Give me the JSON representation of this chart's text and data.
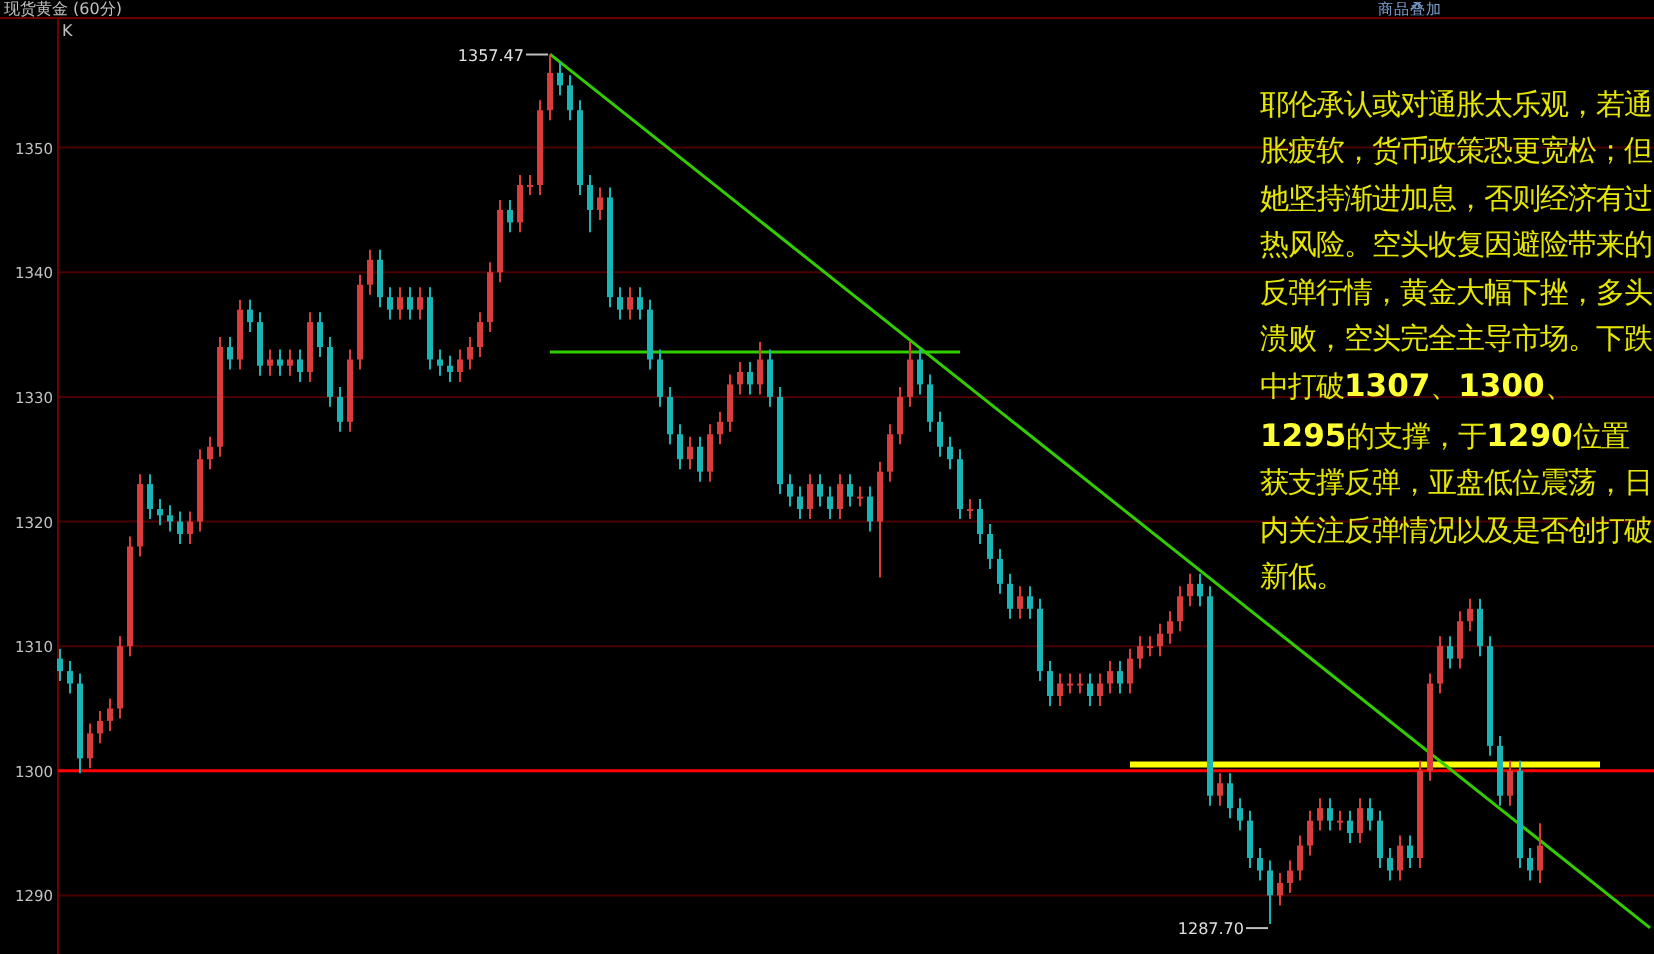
{
  "chart_data": {
    "type": "candlestick",
    "title": "现货黄金 (60分)",
    "categories": [
      null,
      null,
      null,
      null,
      null,
      null,
      null,
      null,
      null,
      null,
      null,
      null,
      null,
      null,
      null,
      null,
      null,
      null,
      null,
      null,
      null,
      null,
      null,
      null,
      null,
      null,
      null,
      null,
      null,
      null,
      null,
      null,
      null,
      null,
      null,
      null,
      null,
      null,
      null,
      null,
      null,
      null,
      null,
      null,
      null,
      null,
      null,
      null,
      null,
      null,
      null,
      null,
      null,
      null,
      null,
      null,
      null,
      null,
      null,
      null,
      null,
      null,
      null,
      null,
      null,
      null,
      null,
      null,
      null,
      null,
      null,
      null,
      null,
      null,
      null,
      null,
      null,
      null,
      null,
      null,
      null,
      null,
      null,
      null,
      null,
      null,
      null,
      null,
      null,
      null,
      null,
      null,
      null,
      null,
      null,
      null,
      null,
      null,
      null,
      null,
      null,
      null,
      null,
      null,
      null,
      null,
      null,
      null,
      null,
      null,
      null,
      null,
      null,
      null,
      null,
      null,
      null,
      null,
      null,
      null,
      null,
      null,
      null,
      null,
      null,
      null,
      null,
      null,
      null,
      null,
      null,
      null,
      null,
      null,
      null,
      null,
      null,
      null,
      null,
      null,
      null,
      null,
      null,
      null,
      null,
      null,
      null,
      null,
      null,
      null,
      null,
      null,
      null,
      null,
      null,
      null,
      null,
      null,
      null,
      null
    ],
    "ohlc": [
      [
        1309,
        1309.8,
        1307.2,
        1308
      ],
      [
        1308,
        1308.8,
        1306.2,
        1307
      ],
      [
        1307,
        1307.8,
        1299.8,
        1301
      ],
      [
        1301,
        1303.8,
        1300.2,
        1303
      ],
      [
        1303,
        1304.8,
        1302.2,
        1304
      ],
      [
        1304,
        1305.8,
        1303.2,
        1305
      ],
      [
        1305,
        1310.8,
        1304.2,
        1310
      ],
      [
        1310,
        1318.8,
        1309.2,
        1318
      ],
      [
        1318,
        1323.8,
        1317.2,
        1323
      ],
      [
        1323,
        1323.8,
        1320.2,
        1321
      ],
      [
        1321,
        1321.8,
        1319.7,
        1320.5
      ],
      [
        1320.5,
        1321.3,
        1319.2,
        1320
      ],
      [
        1320,
        1320.8,
        1318.2,
        1319
      ],
      [
        1319,
        1320.8,
        1318.2,
        1320
      ],
      [
        1320,
        1325.8,
        1319.2,
        1325
      ],
      [
        1325,
        1326.8,
        1324.2,
        1326
      ],
      [
        1326,
        1334.8,
        1325.2,
        1334
      ],
      [
        1334,
        1334.8,
        1332.2,
        1333
      ],
      [
        1333,
        1337.8,
        1332.2,
        1337
      ],
      [
        1337,
        1337.8,
        1335.2,
        1336
      ],
      [
        1336,
        1336.8,
        1331.7,
        1332.5
      ],
      [
        1332.5,
        1333.8,
        1331.7,
        1333
      ],
      [
        1333,
        1333.8,
        1331.7,
        1332.5
      ],
      [
        1332.5,
        1333.8,
        1331.7,
        1333
      ],
      [
        1333,
        1333.8,
        1331.2,
        1332
      ],
      [
        1332,
        1336.8,
        1331.2,
        1336
      ],
      [
        1336,
        1336.8,
        1333.2,
        1334
      ],
      [
        1334,
        1334.8,
        1329.2,
        1330
      ],
      [
        1330,
        1330.8,
        1327.2,
        1328
      ],
      [
        1328,
        1333.8,
        1327.2,
        1333
      ],
      [
        1333,
        1339.8,
        1332.2,
        1339
      ],
      [
        1339,
        1341.8,
        1338.2,
        1341
      ],
      [
        1341,
        1341.8,
        1337.2,
        1338
      ],
      [
        1338,
        1338.8,
        1336.2,
        1337
      ],
      [
        1337,
        1338.8,
        1336.2,
        1338
      ],
      [
        1338,
        1338.8,
        1336.2,
        1337
      ],
      [
        1337,
        1338.8,
        1336.2,
        1338
      ],
      [
        1338,
        1338.8,
        1332.2,
        1333
      ],
      [
        1333,
        1333.8,
        1331.7,
        1332.5
      ],
      [
        1332.5,
        1333.3,
        1331.2,
        1332
      ],
      [
        1332,
        1333.8,
        1331.2,
        1333
      ],
      [
        1333,
        1334.8,
        1332.2,
        1334
      ],
      [
        1334,
        1336.8,
        1333.2,
        1336
      ],
      [
        1336,
        1340.8,
        1335.2,
        1340
      ],
      [
        1340,
        1345.8,
        1339.2,
        1345
      ],
      [
        1345,
        1345.8,
        1343.2,
        1344
      ],
      [
        1344,
        1347.8,
        1343.2,
        1347
      ],
      [
        1347,
        1347.8,
        1346.2,
        1347
      ],
      [
        1347,
        1353.8,
        1346.2,
        1353
      ],
      [
        1353,
        1357.47,
        1352.2,
        1356
      ],
      [
        1356,
        1356.8,
        1354.2,
        1355
      ],
      [
        1355,
        1355.8,
        1352.2,
        1353
      ],
      [
        1353,
        1353.8,
        1346.2,
        1347
      ],
      [
        1347,
        1347.8,
        1343.2,
        1345
      ],
      [
        1345,
        1346.8,
        1344.2,
        1346
      ],
      [
        1346,
        1346.8,
        1337.2,
        1338
      ],
      [
        1338,
        1338.8,
        1336.2,
        1337
      ],
      [
        1337,
        1338.8,
        1336.2,
        1338
      ],
      [
        1338,
        1338.8,
        1336.2,
        1337
      ],
      [
        1337,
        1337.8,
        1332.2,
        1333
      ],
      [
        1333,
        1333.8,
        1329.2,
        1330
      ],
      [
        1330,
        1330.8,
        1326.2,
        1327
      ],
      [
        1327,
        1327.8,
        1324.2,
        1325
      ],
      [
        1325,
        1326.8,
        1324.2,
        1326
      ],
      [
        1326,
        1326.8,
        1323.2,
        1324
      ],
      [
        1324,
        1327.8,
        1323.2,
        1327
      ],
      [
        1327,
        1328.8,
        1326.2,
        1328
      ],
      [
        1328,
        1331.8,
        1327.2,
        1331
      ],
      [
        1331,
        1332.8,
        1330.2,
        1332
      ],
      [
        1332,
        1332.8,
        1330.2,
        1331
      ],
      [
        1331,
        1334.4,
        1330.2,
        1333
      ],
      [
        1333,
        1333.8,
        1329.2,
        1330
      ],
      [
        1330,
        1330.8,
        1322.2,
        1323
      ],
      [
        1323,
        1323.8,
        1321.2,
        1322
      ],
      [
        1322,
        1322.8,
        1320.2,
        1321
      ],
      [
        1321,
        1323.8,
        1320.2,
        1323
      ],
      [
        1323,
        1323.8,
        1321.2,
        1322
      ],
      [
        1322,
        1322.8,
        1320.2,
        1321
      ],
      [
        1321,
        1323.8,
        1320.2,
        1323
      ],
      [
        1323,
        1323.8,
        1321.2,
        1322
      ],
      [
        1322,
        1322.8,
        1321.2,
        1322
      ],
      [
        1322,
        1322.8,
        1319.2,
        1320
      ],
      [
        1320,
        1324.8,
        1315.5,
        1324
      ],
      [
        1324,
        1327.8,
        1323.2,
        1327
      ],
      [
        1327,
        1330.8,
        1326.2,
        1330
      ],
      [
        1330,
        1334.4,
        1329.2,
        1333
      ],
      [
        1333,
        1333.8,
        1330.2,
        1331
      ],
      [
        1331,
        1331.8,
        1327.2,
        1328
      ],
      [
        1328,
        1328.8,
        1325.2,
        1326
      ],
      [
        1326,
        1326.8,
        1324.2,
        1325
      ],
      [
        1325,
        1325.8,
        1320.2,
        1321
      ],
      [
        1321,
        1321.8,
        1320.2,
        1321
      ],
      [
        1321,
        1321.8,
        1318.2,
        1319
      ],
      [
        1319,
        1319.8,
        1316.2,
        1317
      ],
      [
        1317,
        1317.8,
        1314.2,
        1315
      ],
      [
        1315,
        1315.8,
        1312.2,
        1313
      ],
      [
        1313,
        1314.8,
        1312.2,
        1314
      ],
      [
        1314,
        1314.8,
        1312.2,
        1313
      ],
      [
        1313,
        1313.8,
        1307.2,
        1308
      ],
      [
        1308,
        1308.8,
        1305.2,
        1306
      ],
      [
        1306,
        1307.8,
        1305.2,
        1307
      ],
      [
        1307,
        1307.8,
        1306.2,
        1307
      ],
      [
        1307,
        1307.8,
        1306.2,
        1307
      ],
      [
        1307,
        1307.8,
        1305.2,
        1306
      ],
      [
        1306,
        1307.8,
        1305.2,
        1307
      ],
      [
        1307,
        1308.8,
        1306.2,
        1308
      ],
      [
        1308,
        1308.8,
        1306.2,
        1307
      ],
      [
        1307,
        1309.8,
        1306.2,
        1309
      ],
      [
        1309,
        1310.8,
        1308.2,
        1310
      ],
      [
        1310,
        1310.8,
        1309.2,
        1310
      ],
      [
        1310,
        1311.8,
        1309.2,
        1311
      ],
      [
        1311,
        1312.8,
        1310.2,
        1312
      ],
      [
        1312,
        1314.8,
        1311.2,
        1314
      ],
      [
        1314,
        1315.8,
        1313.2,
        1315
      ],
      [
        1315,
        1315.8,
        1313.2,
        1314
      ],
      [
        1314,
        1314.8,
        1297.2,
        1298
      ],
      [
        1298,
        1299.8,
        1297.2,
        1299
      ],
      [
        1299,
        1299.8,
        1296.2,
        1297
      ],
      [
        1297,
        1297.8,
        1295.2,
        1296
      ],
      [
        1296,
        1296.8,
        1292.2,
        1293
      ],
      [
        1293,
        1293.8,
        1291.2,
        1292
      ],
      [
        1292,
        1292.8,
        1287.7,
        1290
      ],
      [
        1290,
        1291.8,
        1289.2,
        1291
      ],
      [
        1291,
        1292.8,
        1290.2,
        1292
      ],
      [
        1292,
        1294.8,
        1291.2,
        1294
      ],
      [
        1294,
        1296.8,
        1293.2,
        1296
      ],
      [
        1296,
        1297.8,
        1295.2,
        1297
      ],
      [
        1297,
        1297.8,
        1295.2,
        1296
      ],
      [
        1296,
        1296.8,
        1295.2,
        1296
      ],
      [
        1296,
        1296.8,
        1294.2,
        1295
      ],
      [
        1295,
        1297.8,
        1294.2,
        1297
      ],
      [
        1297,
        1297.8,
        1295.2,
        1296
      ],
      [
        1296,
        1296.8,
        1292.2,
        1293
      ],
      [
        1293,
        1293.8,
        1291.2,
        1292
      ],
      [
        1292,
        1294.8,
        1291.2,
        1294
      ],
      [
        1294,
        1294.8,
        1292.2,
        1293
      ],
      [
        1293,
        1300.8,
        1292.2,
        1300
      ],
      [
        1300,
        1307.8,
        1299.2,
        1307
      ],
      [
        1307,
        1310.8,
        1306.2,
        1310
      ],
      [
        1310,
        1310.8,
        1308.2,
        1309
      ],
      [
        1309,
        1312.8,
        1308.2,
        1312
      ],
      [
        1312,
        1313.8,
        1311.2,
        1313
      ],
      [
        1313,
        1313.8,
        1309.2,
        1310
      ],
      [
        1310,
        1310.8,
        1301.2,
        1302
      ],
      [
        1302,
        1302.8,
        1297.2,
        1298
      ],
      [
        1298,
        1300.8,
        1297.2,
        1300
      ],
      [
        1300,
        1300.8,
        1292.2,
        1293
      ],
      [
        1293,
        1293.8,
        1291.2,
        1292
      ],
      [
        1292,
        1295.8,
        1291,
        1294
      ],
      null,
      null,
      null,
      null,
      null,
      null,
      null,
      null,
      null,
      null,
      null
    ],
    "series": [
      {
        "type": "line",
        "color": "#ffff00",
        "values": [
          null,
          null,
          null,
          null,
          null,
          null,
          null,
          null,
          null,
          null,
          null,
          null,
          null,
          null,
          null,
          null,
          null,
          null,
          null,
          null,
          null,
          null,
          null,
          null,
          null,
          null,
          null,
          null,
          null,
          null,
          null,
          null,
          null,
          null,
          null,
          null,
          null,
          null,
          null,
          null,
          null,
          null,
          null,
          null,
          null,
          null,
          null,
          null,
          null,
          null,
          null,
          null,
          null,
          null,
          null,
          null,
          null,
          null,
          null,
          null,
          null,
          null,
          null,
          null,
          null,
          null,
          null,
          null,
          null,
          null,
          null,
          null,
          null,
          null,
          null,
          null,
          null,
          null,
          null,
          null,
          null,
          null,
          null,
          null,
          null,
          null,
          null,
          null,
          null,
          null,
          null,
          null,
          null,
          null,
          null,
          null,
          null,
          null,
          null,
          null,
          null,
          null,
          null,
          null,
          null,
          null,
          null,
          1300.5,
          null,
          null,
          null,
          null,
          null,
          null,
          null,
          null,
          null,
          null,
          null,
          null,
          null,
          null,
          null,
          null,
          null,
          null,
          null,
          null,
          null,
          null,
          null,
          null,
          null,
          null,
          null,
          null,
          null,
          null,
          null,
          null,
          null,
          null,
          null,
          null,
          null,
          null,
          null,
          null,
          null,
          null,
          null,
          null,
          null,
          null,
          1300.5,
          null,
          null,
          null,
          null,
          null
        ]
      },
      {
        "type": "line",
        "color": "#33cc00",
        "values": [
          null,
          null,
          null,
          null,
          null,
          null,
          null,
          null,
          null,
          null,
          null,
          null,
          null,
          null,
          null,
          null,
          null,
          null,
          null,
          null,
          null,
          null,
          null,
          null,
          null,
          null,
          null,
          null,
          null,
          null,
          null,
          null,
          null,
          null,
          null,
          null,
          null,
          null,
          null,
          null,
          null,
          null,
          null,
          null,
          null,
          null,
          null,
          null,
          null,
          1333.6,
          null,
          null,
          null,
          null,
          null,
          null,
          null,
          null,
          null,
          null,
          null,
          null,
          null,
          null,
          null,
          null,
          null,
          null,
          null,
          null,
          null,
          null,
          null,
          null,
          null,
          null,
          null,
          null,
          null,
          null,
          null,
          null,
          null,
          null,
          null,
          null,
          null,
          null,
          null,
          null,
          1333.6,
          null,
          null,
          null,
          null,
          null,
          null,
          null,
          null,
          null,
          null,
          null,
          null,
          null,
          null,
          null,
          null,
          null,
          null,
          null,
          null,
          null,
          null,
          null,
          null,
          null,
          null,
          null,
          null,
          null,
          null,
          null,
          null,
          null,
          null,
          null,
          null,
          null,
          null,
          null,
          null,
          null,
          null,
          null,
          null,
          null,
          null,
          null,
          null,
          null,
          null,
          null,
          null,
          null,
          null,
          null,
          null,
          null,
          null,
          null,
          null,
          null,
          null,
          null,
          null,
          null,
          null,
          null,
          null,
          null
        ]
      },
      {
        "type": "line",
        "color": "#33cc00",
        "values": [
          null,
          null,
          null,
          null,
          null,
          null,
          null,
          null,
          null,
          null,
          null,
          null,
          null,
          null,
          null,
          null,
          null,
          null,
          null,
          null,
          null,
          null,
          null,
          null,
          null,
          null,
          null,
          null,
          null,
          null,
          null,
          null,
          null,
          null,
          null,
          null,
          null,
          null,
          null,
          null,
          null,
          null,
          null,
          null,
          null,
          null,
          null,
          null,
          null,
          1357.5,
          null,
          null,
          null,
          null,
          null,
          null,
          null,
          null,
          null,
          null,
          null,
          null,
          null,
          null,
          null,
          null,
          null,
          null,
          null,
          null,
          null,
          null,
          null,
          null,
          null,
          null,
          null,
          null,
          null,
          null,
          null,
          null,
          null,
          null,
          null,
          null,
          null,
          null,
          null,
          null,
          null,
          null,
          null,
          null,
          null,
          null,
          null,
          null,
          null,
          null,
          null,
          null,
          null,
          null,
          null,
          null,
          null,
          null,
          null,
          null,
          null,
          null,
          null,
          null,
          null,
          null,
          null,
          null,
          null,
          null,
          null,
          null,
          null,
          null,
          null,
          null,
          null,
          null,
          null,
          null,
          null,
          null,
          null,
          null,
          null,
          null,
          null,
          null,
          null,
          null,
          null,
          null,
          null,
          null,
          null,
          null,
          null,
          null,
          null,
          null,
          null,
          null,
          null,
          null,
          null,
          null,
          null,
          null,
          null,
          1287.4
        ]
      }
    ],
    "ylim": [
      1285.3,
      1360.4
    ],
    "yticks": [
      1290,
      1300,
      1310,
      1320,
      1330,
      1340,
      1350
    ],
    "grid": "y",
    "ref_lines": [
      {
        "axis": "y",
        "value": 1300,
        "color": "#ff0000"
      }
    ],
    "annotations": [
      "1357.47",
      "1287.70",
      "K",
      "商品叠加",
      "耶伦承认或对通胀太乐观，若通胀疲软，货币政策恐更宽松；但她坚持渐进加息，否则经济有过热风险。空头收复因避险带来的反弹行情，黄金大幅下挫，多头溃败，空头完全主导市场。下跌中打破**1307**、**1300**、**1295**的支撑，于**1290**位置获支撑反弹，亚盘低位震荡，日内关注反弹情况以及是否创打破新低。"
    ]
  }
}
